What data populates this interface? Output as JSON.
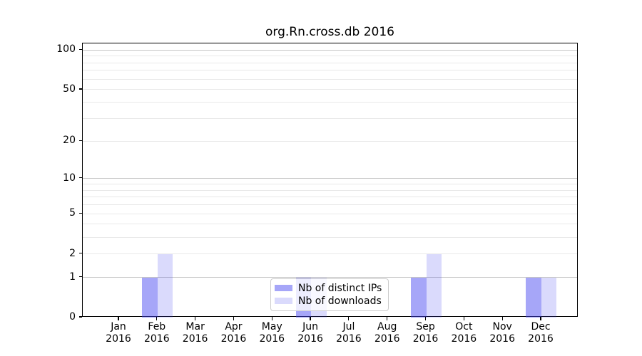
{
  "title": "org.Rn.cross.db 2016",
  "colors": {
    "bar_base": "#4646f0",
    "distinct_ips_fill": "#a6a6f8",
    "downloads_fill": "#dadafc",
    "major_grid": "#c6c6c6",
    "minor_grid": "#e8e8e8",
    "axis": "#000000",
    "legend_border": "#cccccc"
  },
  "chart_data": {
    "type": "bar",
    "title": "org.Rn.cross.db 2016",
    "x_categories": [
      "Jan 2016",
      "Feb 2016",
      "Mar 2016",
      "Apr 2016",
      "May 2016",
      "Jun 2016",
      "Jul 2016",
      "Aug 2016",
      "Sep 2016",
      "Oct 2016",
      "Nov 2016",
      "Dec 2016"
    ],
    "series": [
      {
        "name": "Nb of distinct IPs",
        "color": "#4646f0",
        "alpha": 0.48,
        "values": [
          0,
          1,
          0,
          0,
          0,
          1,
          0,
          0,
          1,
          0,
          0,
          1
        ]
      },
      {
        "name": "Nb of downloads",
        "color": "#4646f0",
        "alpha": 0.2,
        "values": [
          0,
          2,
          0,
          0,
          0,
          1,
          0,
          0,
          2,
          0,
          0,
          1
        ]
      }
    ],
    "yscale": "log1p",
    "ylim": [
      0,
      113
    ],
    "y_tick_values": [
      0,
      1,
      2,
      5,
      10,
      20,
      50,
      100
    ],
    "y_tick_labels": [
      "0",
      "1",
      "2",
      "5",
      "10",
      "20",
      "50",
      "100"
    ],
    "y_major_grid": [
      1,
      10,
      100
    ],
    "y_minor_grid": [
      2,
      3,
      4,
      5,
      6,
      7,
      8,
      9,
      20,
      30,
      40,
      50,
      60,
      70,
      80,
      90
    ],
    "grid": true,
    "legend_position": "lower center"
  }
}
